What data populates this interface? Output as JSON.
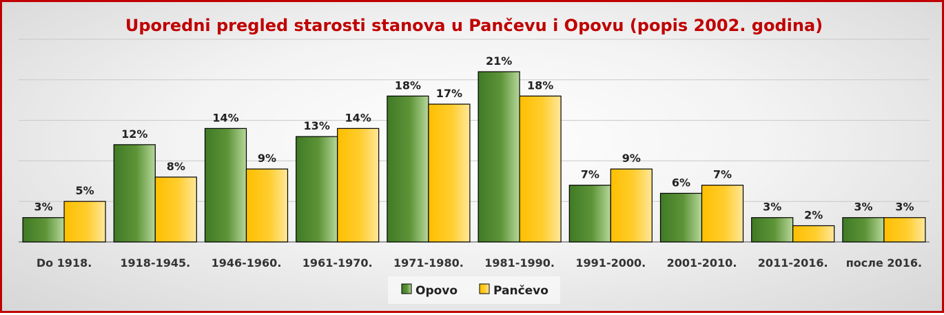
{
  "chart_data": {
    "type": "bar",
    "title": "Uporedni pregled starosti stanova u Pančevu i Opovu (popis 2002. godina)",
    "categories": [
      "Do 1918.",
      "1918-1945.",
      "1946-1960.",
      "1961-1970.",
      "1971-1980.",
      "1981-1990.",
      "1991-2000.",
      "2001-2010.",
      "2011-2016.",
      "после 2016."
    ],
    "series": [
      {
        "name": "Opovo",
        "values": [
          3,
          12,
          14,
          13,
          18,
          21,
          7,
          6,
          3,
          3
        ],
        "labels": [
          "3%",
          "12%",
          "14%",
          "13%",
          "18%",
          "21%",
          "7%",
          "6%",
          "3%",
          "3%"
        ],
        "color": "#548235"
      },
      {
        "name": "Pančevo",
        "values": [
          5,
          8,
          9,
          14,
          17,
          18,
          9,
          7,
          2,
          3
        ],
        "labels": [
          "5%",
          "8%",
          "9%",
          "14%",
          "17%",
          "18%",
          "9%",
          "7%",
          "2%",
          "3%"
        ],
        "color": "#ffc000"
      }
    ],
    "xlabel": "",
    "ylabel": "",
    "ylim": [
      0,
      25
    ],
    "grid": true,
    "legend_position": "bottom"
  }
}
